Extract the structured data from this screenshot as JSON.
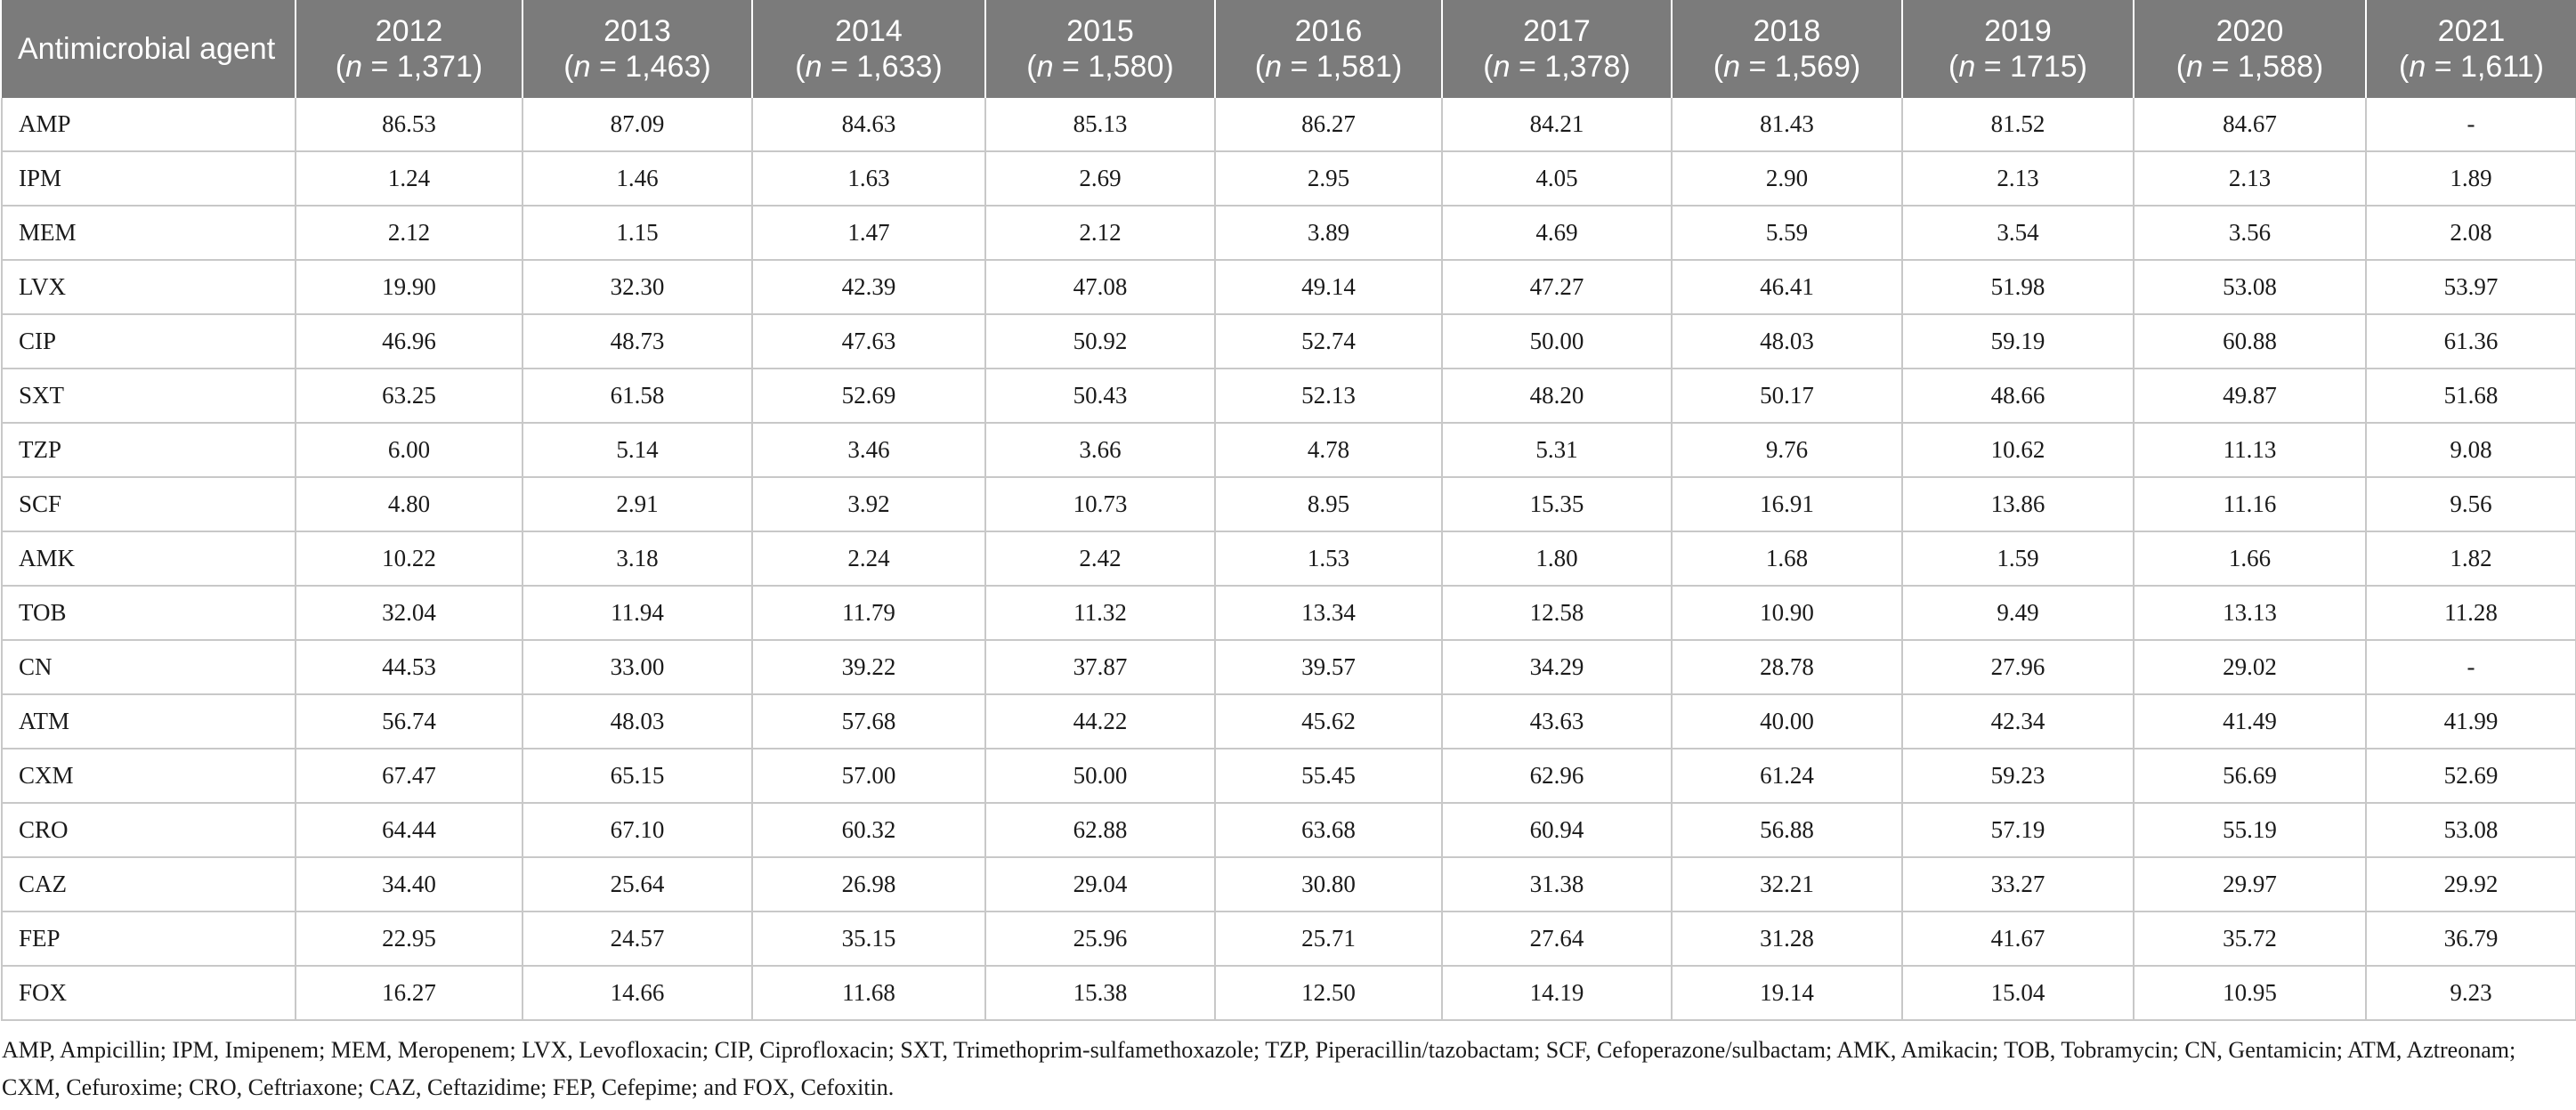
{
  "header": {
    "first_col": "Antimicrobial agent",
    "years": [
      {
        "year": "2012",
        "n": "1,371"
      },
      {
        "year": "2013",
        "n": "1,463"
      },
      {
        "year": "2014",
        "n": "1,633"
      },
      {
        "year": "2015",
        "n": "1,580"
      },
      {
        "year": "2016",
        "n": "1,581"
      },
      {
        "year": "2017",
        "n": "1,378"
      },
      {
        "year": "2018",
        "n": "1,569"
      },
      {
        "year": "2019",
        "n": "1715"
      },
      {
        "year": "2020",
        "n": "1,588"
      },
      {
        "year": "2021",
        "n": "1,611"
      }
    ]
  },
  "rows": [
    {
      "agent": "AMP",
      "values": [
        "86.53",
        "87.09",
        "84.63",
        "85.13",
        "86.27",
        "84.21",
        "81.43",
        "81.52",
        "84.67",
        "-"
      ]
    },
    {
      "agent": "IPM",
      "values": [
        "1.24",
        "1.46",
        "1.63",
        "2.69",
        "2.95",
        "4.05",
        "2.90",
        "2.13",
        "2.13",
        "1.89"
      ]
    },
    {
      "agent": "MEM",
      "values": [
        "2.12",
        "1.15",
        "1.47",
        "2.12",
        "3.89",
        "4.69",
        "5.59",
        "3.54",
        "3.56",
        "2.08"
      ]
    },
    {
      "agent": "LVX",
      "values": [
        "19.90",
        "32.30",
        "42.39",
        "47.08",
        "49.14",
        "47.27",
        "46.41",
        "51.98",
        "53.08",
        "53.97"
      ]
    },
    {
      "agent": "CIP",
      "values": [
        "46.96",
        "48.73",
        "47.63",
        "50.92",
        "52.74",
        "50.00",
        "48.03",
        "59.19",
        "60.88",
        "61.36"
      ]
    },
    {
      "agent": "SXT",
      "values": [
        "63.25",
        "61.58",
        "52.69",
        "50.43",
        "52.13",
        "48.20",
        "50.17",
        "48.66",
        "49.87",
        "51.68"
      ]
    },
    {
      "agent": "TZP",
      "values": [
        "6.00",
        "5.14",
        "3.46",
        "3.66",
        "4.78",
        "5.31",
        "9.76",
        "10.62",
        "11.13",
        "9.08"
      ]
    },
    {
      "agent": "SCF",
      "values": [
        "4.80",
        "2.91",
        "3.92",
        "10.73",
        "8.95",
        "15.35",
        "16.91",
        "13.86",
        "11.16",
        "9.56"
      ]
    },
    {
      "agent": "AMK",
      "values": [
        "10.22",
        "3.18",
        "2.24",
        "2.42",
        "1.53",
        "1.80",
        "1.68",
        "1.59",
        "1.66",
        "1.82"
      ]
    },
    {
      "agent": "TOB",
      "values": [
        "32.04",
        "11.94",
        "11.79",
        "11.32",
        "13.34",
        "12.58",
        "10.90",
        "9.49",
        "13.13",
        "11.28"
      ]
    },
    {
      "agent": "CN",
      "values": [
        "44.53",
        "33.00",
        "39.22",
        "37.87",
        "39.57",
        "34.29",
        "28.78",
        "27.96",
        "29.02",
        "-"
      ]
    },
    {
      "agent": "ATM",
      "values": [
        "56.74",
        "48.03",
        "57.68",
        "44.22",
        "45.62",
        "43.63",
        "40.00",
        "42.34",
        "41.49",
        "41.99"
      ]
    },
    {
      "agent": "CXM",
      "values": [
        "67.47",
        "65.15",
        "57.00",
        "50.00",
        "55.45",
        "62.96",
        "61.24",
        "59.23",
        "56.69",
        "52.69"
      ]
    },
    {
      "agent": "CRO",
      "values": [
        "64.44",
        "67.10",
        "60.32",
        "62.88",
        "63.68",
        "60.94",
        "56.88",
        "57.19",
        "55.19",
        "53.08"
      ]
    },
    {
      "agent": "CAZ",
      "values": [
        "34.40",
        "25.64",
        "26.98",
        "29.04",
        "30.80",
        "31.38",
        "32.21",
        "33.27",
        "29.97",
        "29.92"
      ]
    },
    {
      "agent": "FEP",
      "values": [
        "22.95",
        "24.57",
        "35.15",
        "25.96",
        "25.71",
        "27.64",
        "31.28",
        "41.67",
        "35.72",
        "36.79"
      ]
    },
    {
      "agent": "FOX",
      "values": [
        "16.27",
        "14.66",
        "11.68",
        "15.38",
        "12.50",
        "14.19",
        "19.14",
        "15.04",
        "10.95",
        "9.23"
      ]
    }
  ],
  "footnote": "AMP, Ampicillin; IPM, Imipenem; MEM, Meropenem; LVX, Levofloxacin; CIP, Ciprofloxacin; SXT, Trimethoprim-sulfamethoxazole; TZP, Piperacillin/tazobactam; SCF, Cefoperazone/sulbactam; AMK, Amikacin; TOB, Tobramycin; CN, Gentamicin; ATM, Aztreonam; CXM, Cefuroxime; CRO, Ceftriaxone; CAZ, Ceftazidime; FEP, Cefepime; and FOX, Cefoxitin.",
  "colors": {
    "header_bg": "#7b7b7b",
    "header_text": "#ffffff",
    "grid": "#c8c8c8"
  }
}
